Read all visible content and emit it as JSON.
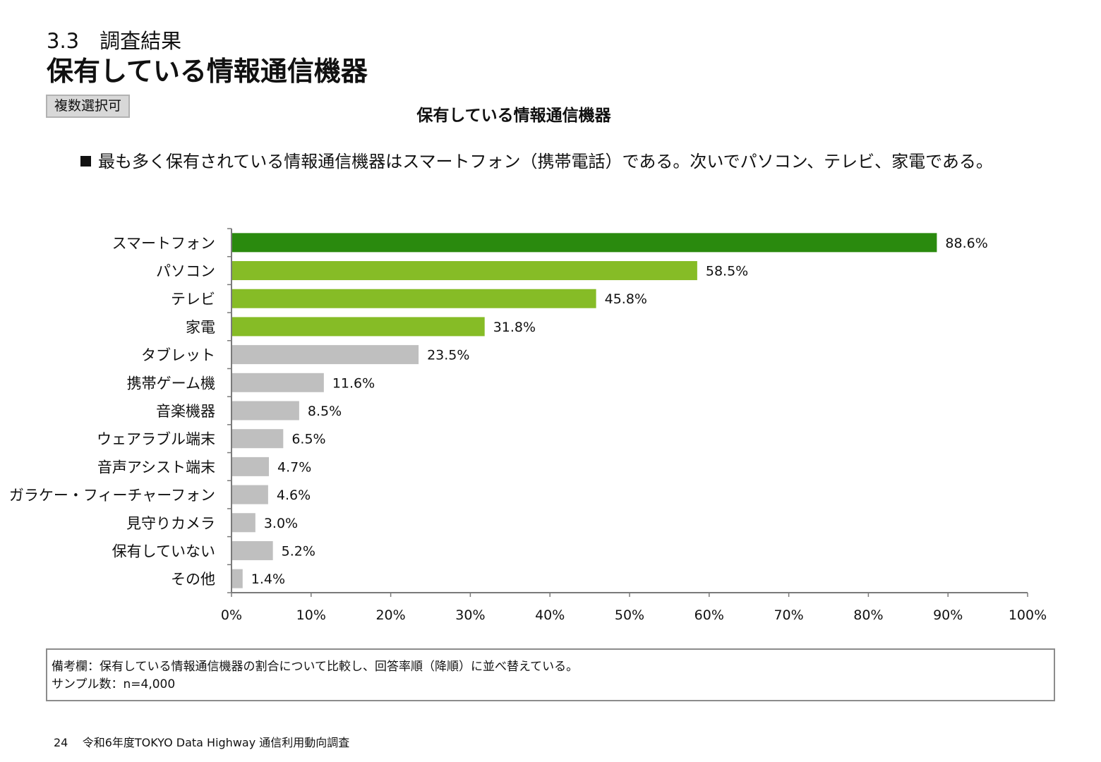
{
  "section_label": "3.3　調査結果",
  "page_title": "保有している情報通信機器",
  "tag": "複数選択可",
  "summary": "最も多く保有されている情報通信機器はスマートフォン（携帯電話）である。次いでパソコン、テレビ、家電である。",
  "note": {
    "line1": "備考欄：保有している情報通信機器の割合について比較し、回答率順（降順）に並べ替えている。",
    "line2": "サンプル数：n=4,000"
  },
  "footer": {
    "page_number": "24",
    "publication": "令和6年度TOKYO Data Highway 通信利用動向調査"
  },
  "colors": {
    "top": "#2a8a0e",
    "highlight": "#86bc26",
    "other": "#bfbfbf",
    "axis": "#7a7a7a"
  },
  "chart_data": {
    "type": "bar",
    "orientation": "horizontal",
    "title": "保有している情報通信機器",
    "categories": [
      "スマートフォン",
      "パソコン",
      "テレビ",
      "家電",
      "タブレット",
      "携帯ゲーム機",
      "音楽機器",
      "ウェアラブル端末",
      "音声アシスト端末",
      "ガラケー・フィーチャーフォン",
      "見守りカメラ",
      "保有していない",
      "その他"
    ],
    "values": [
      88.6,
      58.5,
      45.8,
      31.8,
      23.5,
      11.6,
      8.5,
      6.5,
      4.7,
      4.6,
      3.0,
      5.2,
      1.4
    ],
    "value_labels": [
      "88.6%",
      "58.5%",
      "45.8%",
      "31.8%",
      "23.5%",
      "11.6%",
      "8.5%",
      "6.5%",
      "4.7%",
      "4.6%",
      "3.0%",
      "5.2%",
      "1.4%"
    ],
    "bar_color_groups": [
      "top",
      "highlight",
      "highlight",
      "highlight",
      "other",
      "other",
      "other",
      "other",
      "other",
      "other",
      "other",
      "other",
      "other"
    ],
    "xlim": [
      0,
      100
    ],
    "x_ticks": [
      "0%",
      "10%",
      "20%",
      "30%",
      "40%",
      "50%",
      "60%",
      "70%",
      "80%",
      "90%",
      "100%"
    ],
    "grid": false,
    "legend": "none"
  }
}
